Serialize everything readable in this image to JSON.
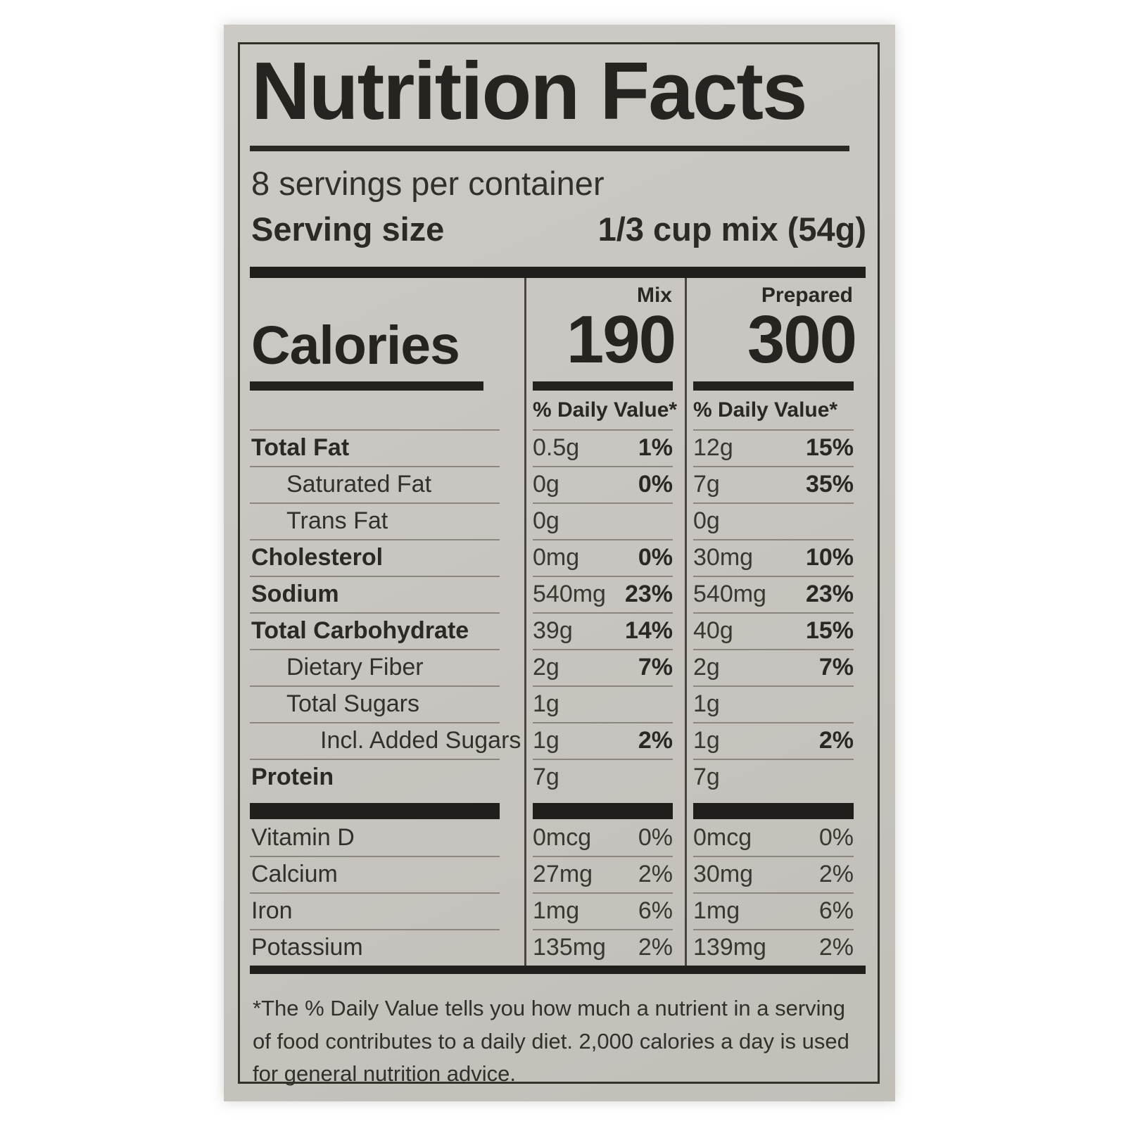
{
  "label": {
    "title": "Nutrition Facts",
    "servings_per_container": "8 servings per container",
    "serving_size_label": "Serving size",
    "serving_size_value": "1/3 cup mix (54g)",
    "calories_label": "Calories",
    "columns": {
      "mix": {
        "name": "Mix",
        "calories": "190",
        "daily_value_header": "% Daily Value*"
      },
      "prepared": {
        "name": "Prepared",
        "calories": "300",
        "daily_value_header": "% Daily Value*"
      }
    },
    "nutrients": [
      {
        "name": "Total Fat",
        "mix_amount": "0.5g",
        "mix_dv": "1%",
        "prepared_amount": "12g",
        "prepared_dv": "15%"
      },
      {
        "name": "Saturated Fat",
        "mix_amount": "0g",
        "mix_dv": "0%",
        "prepared_amount": "7g",
        "prepared_dv": "35%"
      },
      {
        "name": "Trans Fat",
        "mix_amount": "0g",
        "mix_dv": "",
        "prepared_amount": "0g",
        "prepared_dv": ""
      },
      {
        "name": "Cholesterol",
        "mix_amount": "0mg",
        "mix_dv": "0%",
        "prepared_amount": "30mg",
        "prepared_dv": "10%"
      },
      {
        "name": "Sodium",
        "mix_amount": "540mg",
        "mix_dv": "23%",
        "prepared_amount": "540mg",
        "prepared_dv": "23%"
      },
      {
        "name": "Total Carbohydrate",
        "mix_amount": "39g",
        "mix_dv": "14%",
        "prepared_amount": "40g",
        "prepared_dv": "15%"
      },
      {
        "name": "Dietary Fiber",
        "mix_amount": "2g",
        "mix_dv": "7%",
        "prepared_amount": "2g",
        "prepared_dv": "7%"
      },
      {
        "name": "Total Sugars",
        "mix_amount": "1g",
        "mix_dv": "",
        "prepared_amount": "1g",
        "prepared_dv": ""
      },
      {
        "name": "Incl. Added Sugars",
        "mix_amount": "1g",
        "mix_dv": "2%",
        "prepared_amount": "1g",
        "prepared_dv": "2%"
      },
      {
        "name": "Protein",
        "mix_amount": "7g",
        "mix_dv": "",
        "prepared_amount": "7g",
        "prepared_dv": ""
      }
    ],
    "vitamins": [
      {
        "name": "Vitamin D",
        "mix_amount": "0mcg",
        "mix_dv": "0%",
        "prepared_amount": "0mcg",
        "prepared_dv": "0%"
      },
      {
        "name": "Calcium",
        "mix_amount": "27mg",
        "mix_dv": "2%",
        "prepared_amount": "30mg",
        "prepared_dv": "2%"
      },
      {
        "name": "Iron",
        "mix_amount": "1mg",
        "mix_dv": "6%",
        "prepared_amount": "1mg",
        "prepared_dv": "6%"
      },
      {
        "name": "Potassium",
        "mix_amount": "135mg",
        "mix_dv": "2%",
        "prepared_amount": "139mg",
        "prepared_dv": "2%"
      }
    ],
    "footnote_lines": [
      "*The % Daily Value tells you how much a nutrient in a serving",
      "of food contributes to a daily diet. 2,000 calories a day is used",
      "for general nutrition advice."
    ],
    "colors": {
      "paper": "#c8c5c0",
      "ink": "#262420",
      "bar": "#211f1b",
      "hairline": "#8b877e"
    }
  }
}
